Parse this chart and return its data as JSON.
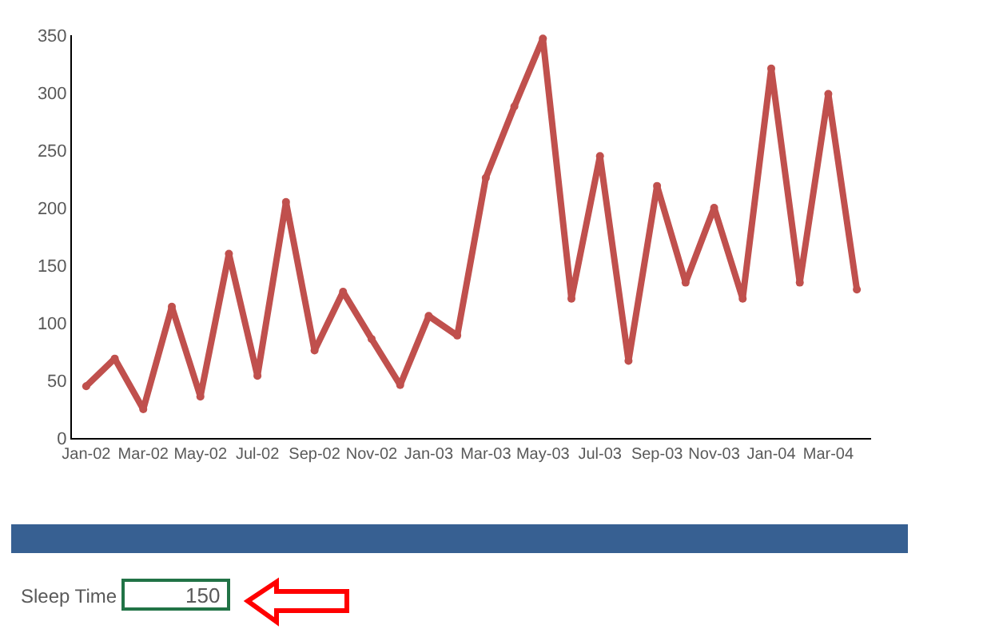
{
  "chart_data": {
    "type": "line",
    "categories": [
      "Jan-02",
      null,
      "Mar-02",
      null,
      "May-02",
      null,
      "Jul-02",
      null,
      "Sep-02",
      null,
      "Nov-02",
      null,
      "Jan-03",
      null,
      "Mar-03",
      null,
      "May-03",
      null,
      "Jul-03",
      null,
      "Sep-03",
      null,
      "Nov-03",
      null,
      "Jan-04",
      null,
      "Mar-04",
      null
    ],
    "series": [
      {
        "color": "#c0504d",
        "values": [
          45,
          69,
          25,
          114,
          36,
          160,
          54,
          205,
          76,
          127,
          86,
          46,
          106,
          89,
          226,
          288,
          347,
          121,
          245,
          67,
          219,
          135,
          200,
          121,
          321,
          135,
          299,
          129
        ]
      }
    ],
    "ylim": [
      0,
      350
    ],
    "yticks": [
      0,
      50,
      100,
      150,
      200,
      250,
      300,
      350
    ],
    "marker": "circle",
    "line_style": "solid",
    "annotations": [
      "Sleep Time",
      "150"
    ]
  }
}
